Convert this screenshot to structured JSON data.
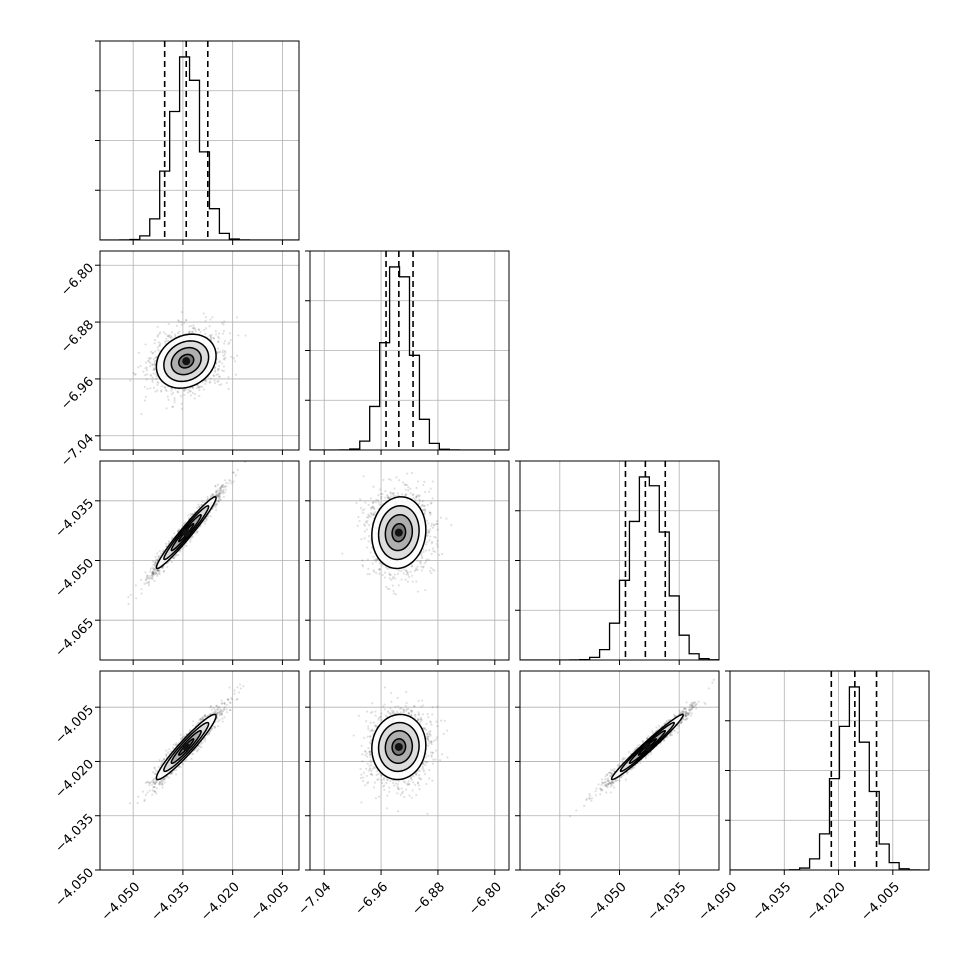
{
  "chart_data": {
    "type": "corner",
    "description_of_axes": "4x4 lower-triangle corner plot; diagonal panels show 1D histograms with dashed quantile lines, off-diagonal panels show 2D scatter with density contours",
    "parameters": [
      {
        "index": 0,
        "range": [
          -4.06,
          -4.0
        ],
        "ticks": [
          -4.05,
          -4.035,
          -4.02,
          -4.005
        ],
        "tick_labels": [
          "−4.050",
          "−4.035",
          "−4.020",
          "−4.005"
        ],
        "mean": -4.034,
        "sd": 0.0045,
        "quantiles": [
          -4.0405,
          -4.034,
          -4.0275
        ]
      },
      {
        "index": 1,
        "range": [
          -7.06,
          -6.78
        ],
        "ticks": [
          -7.04,
          -6.96,
          -6.88,
          -6.8
        ],
        "tick_labels": [
          "−7.04",
          "−6.96",
          "−6.88",
          "−6.80"
        ],
        "mean": -6.935,
        "sd": 0.019,
        "quantiles": [
          -6.953,
          -6.935,
          -6.915
        ]
      },
      {
        "index": 2,
        "range": [
          -4.075,
          -4.025
        ],
        "ticks": [
          -4.065,
          -4.05,
          -4.035
        ],
        "tick_labels": [
          "−4.065",
          "−4.050",
          "−4.035"
        ],
        "mean": -4.043,
        "sd": 0.0045,
        "quantiles": [
          -4.0485,
          -4.0435,
          -4.0385
        ]
      },
      {
        "index": 3,
        "range": [
          -4.05,
          -3.995
        ],
        "ticks": [
          -4.05,
          -4.035,
          -4.02,
          -4.005
        ],
        "tick_labels": [
          "−4.050",
          "−4.035",
          "−4.020",
          "−4.005"
        ],
        "mean": -4.016,
        "sd": 0.0045,
        "quantiles": [
          -4.022,
          -4.0155,
          -4.0095
        ]
      }
    ],
    "correlations": [
      {
        "pair": [
          0,
          1
        ],
        "rho": 0.2
      },
      {
        "pair": [
          0,
          2
        ],
        "rho": 0.97
      },
      {
        "pair": [
          1,
          2
        ],
        "rho": 0.08
      },
      {
        "pair": [
          0,
          3
        ],
        "rho": 0.95
      },
      {
        "pair": [
          1,
          3
        ],
        "rho": 0.05
      },
      {
        "pair": [
          2,
          3
        ],
        "rho": 0.98
      }
    ],
    "contour_sigma_levels": [
      0.5,
      1.0,
      1.5,
      2.0
    ],
    "grid": true,
    "histogram_style": "step",
    "quantile_line_style": "dashed"
  }
}
